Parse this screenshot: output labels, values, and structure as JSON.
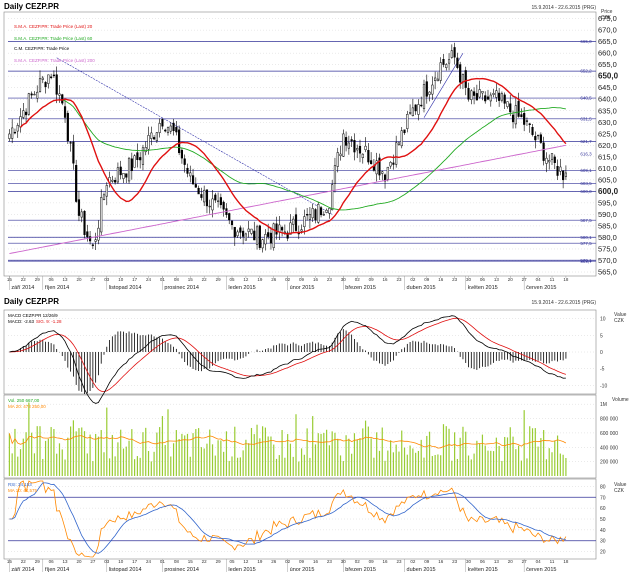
{
  "header": {
    "main_title": "Daily CEZP.PR",
    "main_range": "15.9.2014 - 22.6.2015 (PRG)",
    "bottom_title": "Daily CEZP.PR",
    "bottom_range": "15.9.2014 - 22.6.2015 (PRG)"
  },
  "colors": {
    "candle": "#000000",
    "sma20": "#e01010",
    "sma60": "#22aa22",
    "sma200": "#cc66cc",
    "macd": "#000000",
    "signal": "#e01010",
    "hist": "#000000",
    "volume": "#99cc33",
    "volume_ma": "#ff8800",
    "rsi": "#3366cc",
    "rsi_ma": "#ff8800",
    "hline": "#333399",
    "trend": "#3333aa",
    "grid": "#cccccc",
    "dotted": "#999999"
  },
  "price_axis": {
    "ticks": [
      "675,0",
      "670,0",
      "665,0",
      "660,0",
      "655,0",
      "650,0",
      "645,0",
      "640,0",
      "635,0",
      "630,0",
      "625,0",
      "620,0",
      "615,0",
      "610,0",
      "605,0",
      "600,0",
      "595,0",
      "590,0",
      "585,0",
      "580,0",
      "575,0",
      "570,0",
      "565,0"
    ],
    "unit_label": "Price",
    "unit": "CZK"
  },
  "price_legend": [
    "S.M.A. CEZP.PR: Trade Price (Last) 20",
    "S.M.A. CEZP.PR: Trade Price (Last) 60",
    "C.M. CEZP.PR: Trade Price",
    "S.M.A. CEZP.PR: Trade Price (Last) 200"
  ],
  "level_labels": [
    "665,0",
    "652,2",
    "640,5",
    "631,5",
    "621,7",
    "616,3",
    "609,1",
    "603,5",
    "600,0",
    "587,5",
    "580,1",
    "577,5",
    "570,1",
    "569,7"
  ],
  "x_top_days": [
    "15",
    "22",
    "29",
    "06",
    "13",
    "20",
    "27",
    "03",
    "10",
    "17",
    "24",
    "01",
    "08",
    "15",
    "22",
    "29",
    "05",
    "12",
    "19",
    "26",
    "02",
    "09",
    "16",
    "23",
    "30",
    "02",
    "09",
    "16",
    "23",
    "02",
    "09",
    "16",
    "23",
    "30",
    "06",
    "13",
    "20",
    "27",
    "04",
    "11",
    "18",
    "25",
    "01",
    "08",
    "15",
    "22"
  ],
  "x_month_labels": [
    "září 2014",
    "říjen 2014",
    "listopad 2014",
    "prosinec 2014",
    "leden 2015",
    "únor 2015",
    "březen 2015",
    "duben 2015",
    "květen 2015",
    "červen 2015"
  ],
  "macd_panel": {
    "legend1": "MACD CEZP.PR 12/26/9",
    "legend2": "MACD: -2.63",
    "legend3": "SIG. 9: -1.28",
    "unit": "Value",
    "unit2": "CZK",
    "ticks": [
      "10",
      "5",
      "0",
      "-5",
      "-10"
    ]
  },
  "volume_panel": {
    "legend1": "Vol. 250 667,00",
    "legend2": "MA 20: 473 250,00",
    "unit": "Volume",
    "ticks": [
      "1M",
      "800 000",
      "600 000",
      "400 000",
      "200 000"
    ]
  },
  "rsi_panel": {
    "legend1": "RSI: 34,153",
    "legend2": "MA 10: 44,575",
    "unit": "Value",
    "unit2": "CZK",
    "ticks": [
      "80",
      "70",
      "60",
      "50",
      "40",
      "30",
      "20"
    ]
  },
  "chart_data": [
    {
      "type": "candlestick",
      "title": "Daily CEZP.PR",
      "ylabel": "CZK",
      "ylim": [
        565,
        677
      ],
      "x_range": [
        "2014-09-15",
        "2015-06-22"
      ],
      "anchor_closes": [
        {
          "date": "2014-09-15",
          "close": 625
        },
        {
          "date": "2014-09-29",
          "close": 645
        },
        {
          "date": "2014-10-06",
          "close": 652
        },
        {
          "date": "2014-10-13",
          "close": 635
        },
        {
          "date": "2014-10-20",
          "close": 590
        },
        {
          "date": "2014-10-27",
          "close": 575
        },
        {
          "date": "2014-11-03",
          "close": 605
        },
        {
          "date": "2014-11-17",
          "close": 612
        },
        {
          "date": "2014-12-01",
          "close": 632
        },
        {
          "date": "2014-12-05",
          "close": 625
        },
        {
          "date": "2014-12-15",
          "close": 605
        },
        {
          "date": "2015-01-05",
          "close": 585
        },
        {
          "date": "2015-01-19",
          "close": 580
        },
        {
          "date": "2015-02-02",
          "close": 583
        },
        {
          "date": "2015-02-16",
          "close": 590
        },
        {
          "date": "2015-02-23",
          "close": 597
        },
        {
          "date": "2015-03-02",
          "close": 625
        },
        {
          "date": "2015-03-16",
          "close": 615
        },
        {
          "date": "2015-03-23",
          "close": 608
        },
        {
          "date": "2015-04-06",
          "close": 635
        },
        {
          "date": "2015-04-20",
          "close": 655
        },
        {
          "date": "2015-04-27",
          "close": 658
        },
        {
          "date": "2015-05-04",
          "close": 640
        },
        {
          "date": "2015-05-18",
          "close": 640
        },
        {
          "date": "2015-06-01",
          "close": 630
        },
        {
          "date": "2015-06-15",
          "close": 612
        },
        {
          "date": "2015-06-19",
          "close": 608
        }
      ],
      "series": [
        {
          "name": "S.M.A. CEZP.PR: Trade Price (Last) 20",
          "kind": "sma20"
        },
        {
          "name": "S.M.A. CEZP.PR: Trade Price (Last) 60",
          "kind": "sma60"
        },
        {
          "name": "S.M.A. CEZP.PR: Trade Price (Last) 200",
          "kind": "sma200"
        }
      ],
      "horizontal_levels": [
        665.0,
        652.2,
        640.5,
        631.5,
        621.7,
        609.1,
        603.5,
        600.0,
        587.5,
        580.1,
        577.5,
        570.1,
        569.7
      ],
      "last_close": 608.0
    },
    {
      "type": "line",
      "title": "MACD",
      "series": [
        {
          "name": "MACD"
        },
        {
          "name": "SIG. 9"
        }
      ],
      "last_values": {
        "macd": -2.63,
        "signal": -1.28
      },
      "ylim": [
        -12,
        12
      ]
    },
    {
      "type": "bar",
      "title": "Volume",
      "last_value": 250667,
      "ma20": 473250,
      "ylim": [
        0,
        1100000
      ]
    },
    {
      "type": "line",
      "title": "RSI",
      "last_values": {
        "rsi": 34.153,
        "ma10": 44.575
      },
      "ylim": [
        15,
        85
      ],
      "reference_lines": [
        70,
        50,
        30
      ]
    }
  ]
}
